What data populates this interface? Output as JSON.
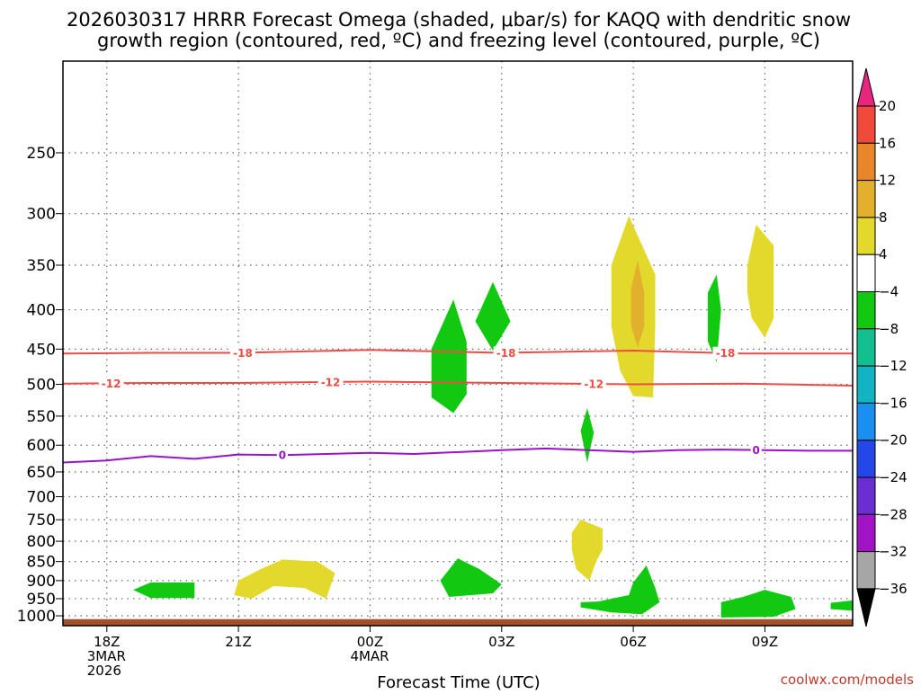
{
  "chart_data": {
    "type": "heatmap",
    "title": [
      "2026030317 HRRR Forecast Omega (shaded, μbar/s) for KAQQ with dendritic snow",
      "growth region (contoured, red, ºC) and freezing level (contoured, purple, ºC)"
    ],
    "xlabel": "Forecast Time (UTC)",
    "ylabel": "",
    "x_ticks": [
      {
        "hour": 0,
        "lines": [
          "18Z",
          "3MAR",
          "2026"
        ]
      },
      {
        "hour": 3,
        "lines": [
          "21Z"
        ]
      },
      {
        "hour": 6,
        "lines": [
          "00Z",
          "4MAR"
        ]
      },
      {
        "hour": 9,
        "lines": [
          "03Z"
        ]
      },
      {
        "hour": 12,
        "lines": [
          "06Z"
        ]
      },
      {
        "hour": 15,
        "lines": [
          "09Z"
        ]
      }
    ],
    "x_range_hours": [
      -1,
      17
    ],
    "y_ticks_hPa": [
      250,
      300,
      350,
      400,
      450,
      500,
      550,
      600,
      650,
      700,
      750,
      800,
      850,
      900,
      950,
      1000
    ],
    "y_range_hPa": [
      190,
      1030
    ],
    "colorbar": {
      "labels": [
        20,
        16,
        12,
        8,
        4,
        -4,
        -8,
        -12,
        -16,
        -20,
        -24,
        -28,
        -32,
        -36
      ],
      "colors": [
        "#e8267f",
        "#ef4a3c",
        "#e9862a",
        "#e2b02c",
        "#e3d92c",
        "#ffffff",
        "#12c912",
        "#12bf8e",
        "#12b4c4",
        "#1a8ff2",
        "#2348e6",
        "#6a2ed2",
        "#a313c6",
        "#a6a6a6",
        "#000000"
      ]
    },
    "contours": [
      {
        "name": "dgz-minus18",
        "label": "-18",
        "color": "#f04b45",
        "points": [
          [
            -1,
            456
          ],
          [
            1,
            455
          ],
          [
            3,
            455
          ],
          [
            6,
            451
          ],
          [
            9,
            455
          ],
          [
            12,
            452
          ],
          [
            14.5,
            456
          ],
          [
            17,
            456
          ]
        ],
        "label_hours": [
          3.1,
          9.1,
          14.1
        ]
      },
      {
        "name": "dgz-minus12",
        "label": "-12",
        "color": "#f04b45",
        "points": [
          [
            -1,
            499
          ],
          [
            1,
            498
          ],
          [
            3,
            498
          ],
          [
            6,
            496
          ],
          [
            9,
            498
          ],
          [
            12,
            500
          ],
          [
            14.5,
            499
          ],
          [
            17,
            502
          ]
        ],
        "label_hours": [
          0.1,
          5.1,
          11.1
        ]
      },
      {
        "name": "freezing-level",
        "label": "0",
        "color": "#9a12c8",
        "points": [
          [
            -1,
            632
          ],
          [
            0,
            628
          ],
          [
            1,
            620
          ],
          [
            2,
            625
          ],
          [
            3,
            617
          ],
          [
            4,
            618
          ],
          [
            6,
            614
          ],
          [
            7,
            616
          ],
          [
            9,
            609
          ],
          [
            10,
            606
          ],
          [
            12,
            612
          ],
          [
            13,
            609
          ],
          [
            14,
            608
          ],
          [
            16,
            610
          ],
          [
            17,
            610
          ]
        ],
        "label_hours": [
          4,
          14.8
        ]
      }
    ],
    "omega_regions": [
      {
        "name": "omega-upward-8",
        "value": -8,
        "color": "#12c912",
        "points": [
          [
            8.4,
            414
          ],
          [
            8.8,
            368
          ],
          [
            9.2,
            414
          ],
          [
            8.8,
            452
          ]
        ]
      },
      {
        "name": "omega-upward-8",
        "value": -8,
        "color": "#12c912",
        "points": [
          [
            7.4,
            450
          ],
          [
            7.9,
            388
          ],
          [
            8.2,
            440
          ],
          [
            8.2,
            515
          ],
          [
            7.9,
            545
          ],
          [
            7.4,
            520
          ]
        ]
      },
      {
        "name": "omega-upward-8",
        "value": -8,
        "color": "#12c912",
        "points": [
          [
            10.8,
            575
          ],
          [
            10.95,
            537
          ],
          [
            11.1,
            578
          ],
          [
            10.95,
            632
          ]
        ]
      },
      {
        "name": "omega-upward-8",
        "value": -8,
        "color": "#12c912",
        "points": [
          [
            13.7,
            380
          ],
          [
            13.9,
            360
          ],
          [
            14.0,
            400
          ],
          [
            13.9,
            468
          ],
          [
            13.7,
            440
          ]
        ]
      },
      {
        "name": "omega-downward-4",
        "value": 4,
        "color": "#e3d92c",
        "points": [
          [
            11.5,
            350
          ],
          [
            11.9,
            302
          ],
          [
            12.5,
            360
          ],
          [
            12.5,
            420
          ],
          [
            12.45,
            520
          ],
          [
            12,
            518
          ],
          [
            11.7,
            480
          ],
          [
            11.5,
            420
          ]
        ]
      },
      {
        "name": "omega-downward-8",
        "value": 8,
        "color": "#e2b02c",
        "points": [
          [
            11.95,
            375
          ],
          [
            12.1,
            345
          ],
          [
            12.25,
            380
          ],
          [
            12.25,
            420
          ],
          [
            12.1,
            448
          ],
          [
            11.95,
            420
          ]
        ]
      },
      {
        "name": "omega-downward-4",
        "value": 4,
        "color": "#e3d92c",
        "points": [
          [
            14.6,
            350
          ],
          [
            14.8,
            310
          ],
          [
            15.2,
            330
          ],
          [
            15.2,
            410
          ],
          [
            15,
            435
          ],
          [
            14.7,
            410
          ],
          [
            14.6,
            380
          ]
        ]
      },
      {
        "name": "omega-downward-4",
        "value": 4,
        "color": "#e3d92c",
        "points": [
          [
            10.6,
            780
          ],
          [
            10.8,
            750
          ],
          [
            11.3,
            770
          ],
          [
            11.3,
            820
          ],
          [
            11.15,
            850
          ],
          [
            11,
            900
          ],
          [
            10.7,
            870
          ],
          [
            10.6,
            820
          ]
        ]
      },
      {
        "name": "omega-upward-8",
        "value": -8,
        "color": "#12c912",
        "points": [
          [
            0.6,
            925
          ],
          [
            1,
            905
          ],
          [
            2,
            905
          ],
          [
            2,
            948
          ],
          [
            1,
            948
          ]
        ]
      },
      {
        "name": "omega-downward-4",
        "value": 4,
        "color": "#e3d92c",
        "points": [
          [
            3,
            900
          ],
          [
            3.5,
            870
          ],
          [
            4,
            845
          ],
          [
            4.8,
            850
          ],
          [
            5.2,
            880
          ],
          [
            5,
            950
          ],
          [
            4.5,
            920
          ],
          [
            3.8,
            915
          ],
          [
            3.3,
            950
          ],
          [
            2.9,
            940
          ]
        ]
      },
      {
        "name": "omega-upward-8",
        "value": -8,
        "color": "#12c912",
        "points": [
          [
            7.6,
            900
          ],
          [
            8,
            842
          ],
          [
            8.5,
            870
          ],
          [
            9,
            910
          ],
          [
            8.8,
            935
          ],
          [
            8.5,
            938
          ],
          [
            7.8,
            945
          ]
        ]
      },
      {
        "name": "omega-upward-8",
        "value": -8,
        "color": "#12c912",
        "points": [
          [
            10.8,
            960
          ],
          [
            11.2,
            958
          ],
          [
            11.5,
            950
          ],
          [
            11.9,
            940
          ],
          [
            12,
            905
          ],
          [
            12.3,
            860
          ],
          [
            12.5,
            920
          ],
          [
            12.6,
            960
          ],
          [
            12.2,
            995
          ],
          [
            11.5,
            990
          ],
          [
            10.8,
            975
          ]
        ]
      },
      {
        "name": "omega-upward-8",
        "value": -8,
        "color": "#12c912",
        "points": [
          [
            14,
            960
          ],
          [
            14.5,
            945
          ],
          [
            15,
            925
          ],
          [
            15.6,
            945
          ],
          [
            15.7,
            980
          ],
          [
            15.2,
            1003
          ],
          [
            14,
            1005
          ]
        ]
      },
      {
        "name": "omega-upward-8",
        "value": -8,
        "color": "#12c912",
        "points": [
          [
            16.5,
            962
          ],
          [
            17,
            955
          ],
          [
            17,
            985
          ],
          [
            16.5,
            980
          ]
        ]
      }
    ],
    "ground_level_hPa": 1010
  },
  "credit": "coolwx.com/models"
}
